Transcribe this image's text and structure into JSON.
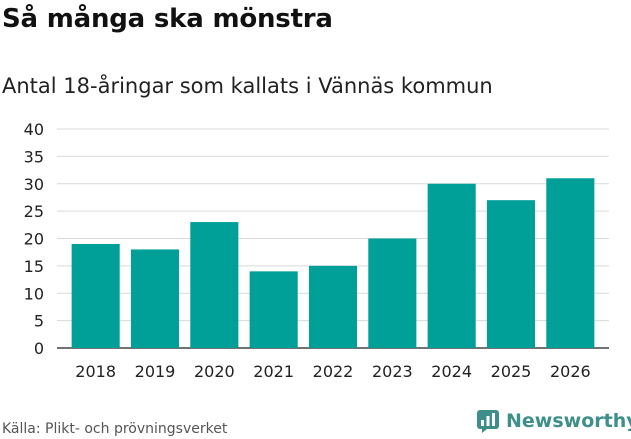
{
  "title": "Så många ska mönstra",
  "subtitle": "Antal 18-åringar som kallats i Vännäs kommun",
  "source": "Källa: Plikt- och prövningsverket",
  "brand": {
    "name": "Newsworthy",
    "icon": "newsworthy-logo-icon",
    "color": "#3e8e8a"
  },
  "colors": {
    "bar": "#00a098",
    "grid": "#d9d9d9",
    "tick_text": "#222222"
  },
  "chart_data": {
    "type": "bar",
    "categories": [
      "2018",
      "2019",
      "2020",
      "2021",
      "2022",
      "2023",
      "2024",
      "2025",
      "2026"
    ],
    "values": [
      19,
      18,
      23,
      14,
      15,
      20,
      30,
      27,
      31
    ],
    "title": "Så många ska mönstra",
    "subtitle": "Antal 18-åringar som kallats i Vännäs kommun",
    "xlabel": "",
    "ylabel": "",
    "ylim": [
      0,
      40
    ],
    "yticks": [
      0,
      5,
      10,
      15,
      20,
      25,
      30,
      35,
      40
    ],
    "grid": true,
    "legend": "none"
  }
}
